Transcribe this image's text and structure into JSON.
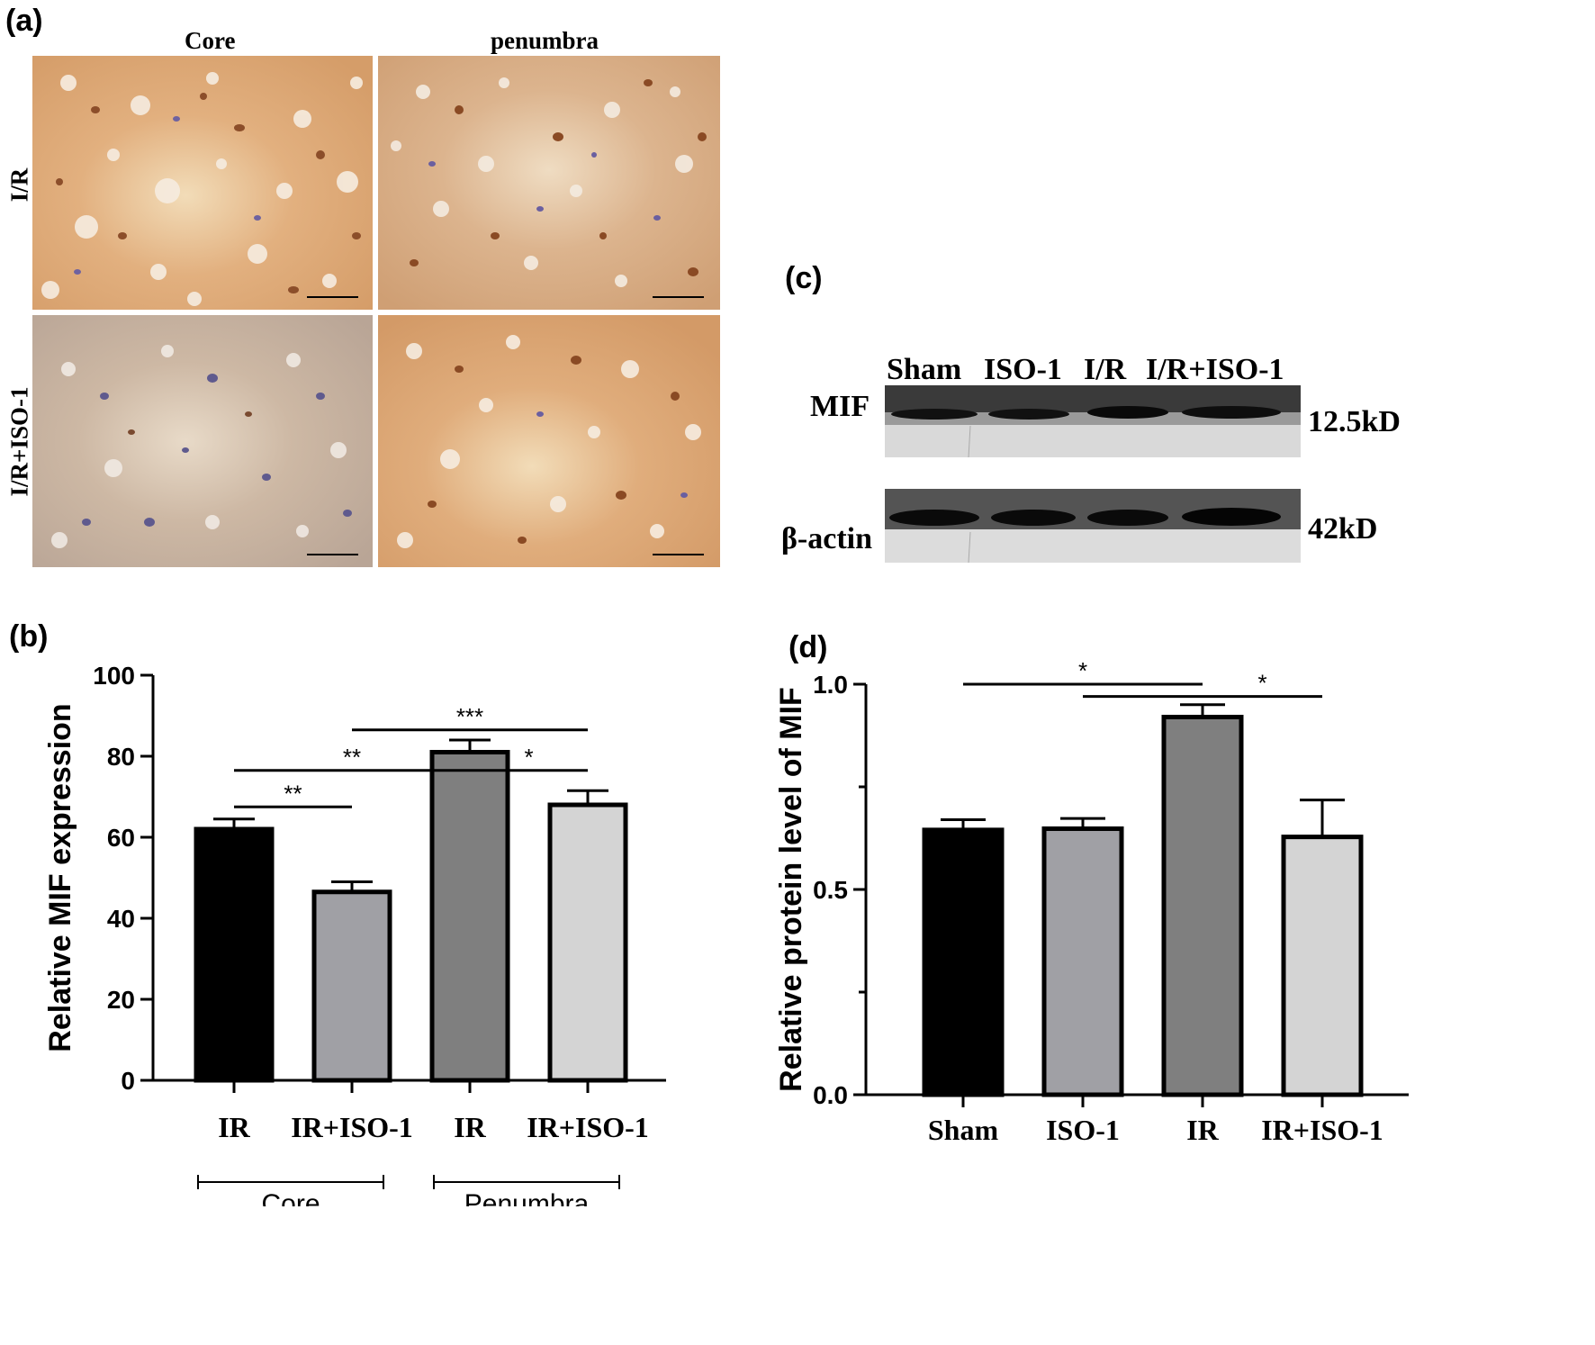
{
  "panel_a": {
    "label": "(a)",
    "columns": [
      "Core",
      "penumbra"
    ],
    "rows": [
      "I/R",
      "I/R+ISO-1"
    ]
  },
  "panel_c": {
    "label": "(c)",
    "lanes": [
      "Sham",
      "ISO-1",
      "I/R",
      "I/R+ISO-1"
    ],
    "proteins": [
      {
        "name": "MIF",
        "size": "12.5kD"
      },
      {
        "name": "β-actin",
        "size": "42kD"
      }
    ]
  },
  "chart_data": [
    {
      "panel": "(b)",
      "type": "bar",
      "categories": [
        "IR",
        "IR+ISO-1",
        "IR",
        "IR+ISO-1"
      ],
      "values": [
        62,
        46.5,
        81,
        68
      ],
      "errors": [
        2.5,
        2.5,
        3,
        3.5
      ],
      "colors": [
        "#000000",
        "#a0a0a5",
        "#7f7f7f",
        "#d4d4d4"
      ],
      "ylabel": "Relative MIF expression",
      "ylim": [
        0,
        100
      ],
      "yticks": [
        0,
        20,
        40,
        60,
        80,
        100
      ],
      "groups": [
        {
          "label": "Core",
          "from": 0,
          "to": 1
        },
        {
          "label": "Penumbra",
          "from": 2,
          "to": 3
        }
      ],
      "significance": [
        {
          "from": 0,
          "to": 1,
          "y": 67.5,
          "label": "**"
        },
        {
          "from": 0,
          "to": 2,
          "y": 76.5,
          "label": "**"
        },
        {
          "from": 2,
          "to": 3,
          "y": 76.5,
          "label": "*"
        },
        {
          "from": 1,
          "to": 3,
          "y": 86.5,
          "label": "***"
        }
      ]
    },
    {
      "panel": "(d)",
      "type": "bar",
      "categories": [
        "Sham",
        "ISO-1",
        "IR",
        "IR+ISO-1"
      ],
      "values": [
        0.645,
        0.648,
        0.92,
        0.628
      ],
      "errors": [
        0.025,
        0.025,
        0.03,
        0.09
      ],
      "colors": [
        "#000000",
        "#a0a0a5",
        "#7f7f7f",
        "#d4d4d4"
      ],
      "ylabel": "Relative protein level of MIF",
      "ylim": [
        0,
        1
      ],
      "yticks": [
        0.0,
        0.5,
        1.0
      ],
      "significance": [
        {
          "from": 0,
          "to": 2,
          "y": 1.0,
          "label": "*"
        },
        {
          "from": 1,
          "to": 2,
          "y": 0.97,
          "label": ""
        },
        {
          "from": 2,
          "to": 3,
          "y": 0.97,
          "label": "*"
        }
      ]
    }
  ]
}
